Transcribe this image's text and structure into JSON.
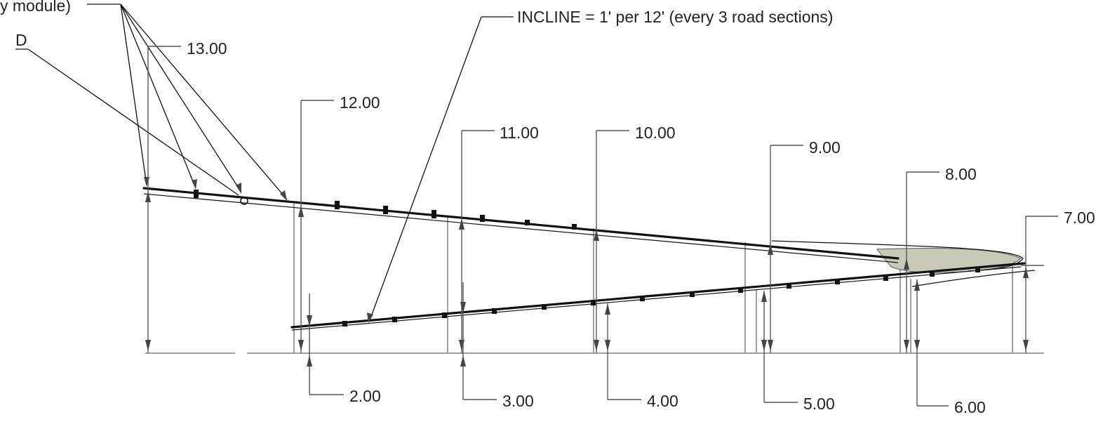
{
  "notes": {
    "support_label_fragment": "y module)",
    "detail_letter": "D",
    "incline": "INCLINE = 1' per 12' (every 3 road sections)"
  },
  "upper_elevations": [
    "13.00",
    "12.00",
    "11.00",
    "10.00",
    "9.00",
    "8.00",
    "7.00"
  ],
  "lower_elevations": [
    "2.00",
    "3.00",
    "4.00",
    "5.00",
    "6.00"
  ],
  "colors": {
    "line": "#111111",
    "dimension": "#555555",
    "post": "#888888",
    "shade": "#c9c9b8"
  }
}
